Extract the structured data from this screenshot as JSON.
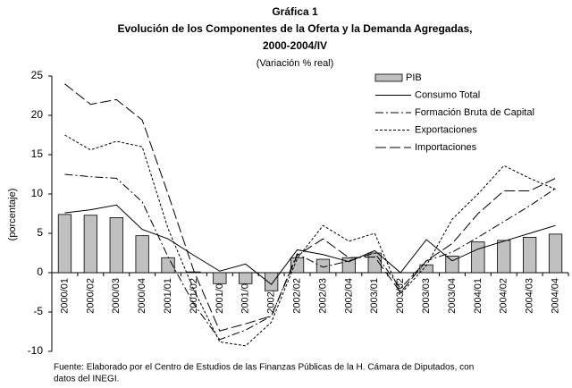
{
  "chart_data": {
    "type": "combo",
    "title": [
      "Gráfica 1",
      "Evolución de los Componentes de la Oferta y la Demanda Agregadas,",
      "2000-2004/IV"
    ],
    "subtitle": "(Variación % real)",
    "y_label": "(porcentaje)",
    "footnote": [
      "Fuente: Elaborado por el Centro de Estudios de las Finanzas Públicas de la H. Cámara de Diputados, con",
      "datos del INEGI."
    ],
    "categories": [
      "2000/01",
      "2000/02",
      "2000/03",
      "2000/04",
      "2001/01",
      "2001/02",
      "2001/03",
      "2001/04",
      "2002/01",
      "2002/02",
      "2002/03",
      "2002/04",
      "2003/01",
      "2003/02",
      "2003/03",
      "2003/04",
      "2004/01",
      "2004/02",
      "2004/03",
      "2004/04"
    ],
    "ylim": [
      -10,
      25
    ],
    "yticks": [
      -10,
      -5,
      0,
      5,
      10,
      15,
      20,
      25
    ],
    "grid": false,
    "legend": "upper right",
    "series": [
      {
        "name": "PIB",
        "kind": "bar",
        "color": "#c0c0c0",
        "values": [
          7.4,
          7.3,
          7.0,
          4.7,
          1.9,
          0.1,
          -1.4,
          -1.4,
          -2.3,
          1.9,
          1.7,
          1.9,
          2.5,
          0.0,
          1.0,
          2.1,
          3.9,
          4.1,
          4.5,
          4.9
        ]
      },
      {
        "name": "Consumo Total",
        "kind": "line",
        "color": "#000000",
        "dash": "none",
        "values": [
          7.6,
          8.0,
          8.6,
          5.5,
          4.3,
          2.2,
          0.2,
          1.1,
          -1.5,
          2.9,
          2.3,
          1.4,
          2.8,
          0.0,
          4.2,
          1.5,
          3.0,
          4.0,
          5.0,
          6.0
        ]
      },
      {
        "name": "Formación Bruta de Capital",
        "kind": "line",
        "color": "#000000",
        "dash": "9 3 2 3",
        "values": [
          12.5,
          12.2,
          12.0,
          9.0,
          2.0,
          -4.0,
          -8.5,
          -7.3,
          -5.5,
          2.4,
          0.7,
          1.5,
          2.5,
          -2.0,
          1.5,
          2.6,
          4.5,
          6.5,
          8.5,
          10.7
        ]
      },
      {
        "name": "Exportaciones",
        "kind": "line",
        "color": "#000000",
        "dash": "3 2",
        "values": [
          17.5,
          15.6,
          16.7,
          16.0,
          5.6,
          -2.2,
          -8.8,
          -9.3,
          -6.3,
          1.8,
          6.0,
          4.0,
          5.0,
          -2.7,
          0.9,
          6.8,
          10.0,
          13.6,
          12.0,
          10.6
        ]
      },
      {
        "name": "Importaciones",
        "kind": "line",
        "color": "#000000",
        "dash": "12 4",
        "values": [
          24.0,
          21.4,
          22.0,
          19.4,
          10.0,
          0.2,
          -7.4,
          -6.5,
          -5.5,
          2.2,
          4.3,
          1.9,
          2.0,
          -2.5,
          1.5,
          3.7,
          7.5,
          10.4,
          10.4,
          12.0
        ]
      }
    ]
  }
}
